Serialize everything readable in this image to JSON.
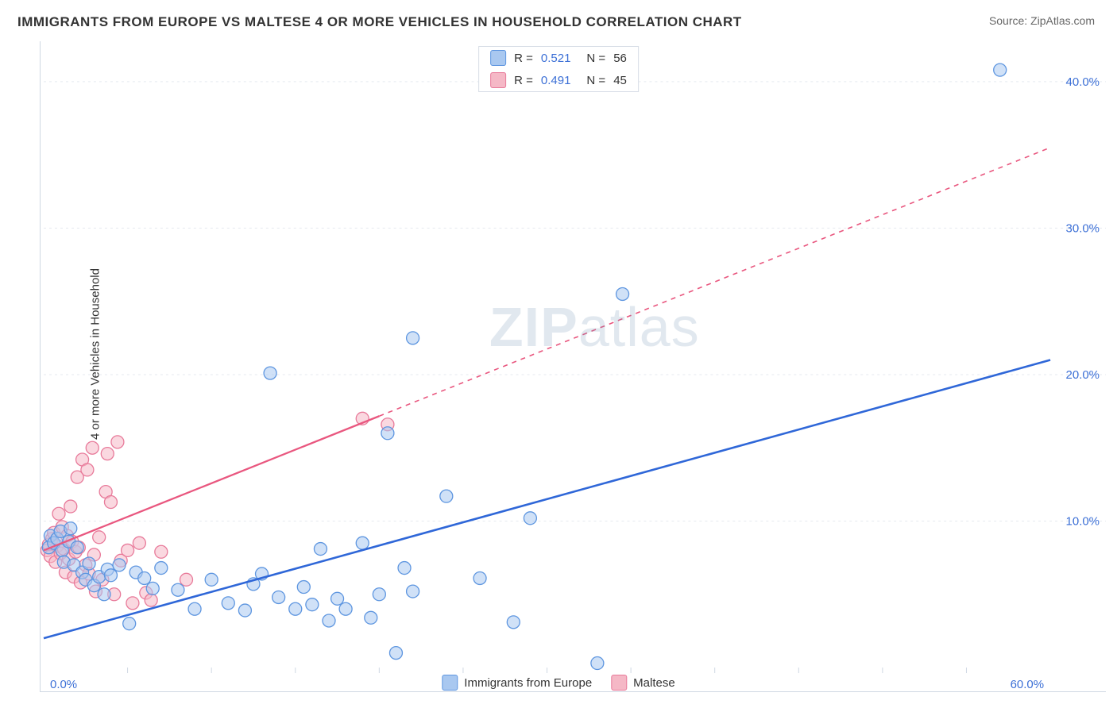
{
  "title": "IMMIGRANTS FROM EUROPE VS MALTESE 4 OR MORE VEHICLES IN HOUSEHOLD CORRELATION CHART",
  "source_label": "Source:",
  "source_value": "ZipAtlas.com",
  "ylabel": "4 or more Vehicles in Household",
  "watermark": "ZIPatlas",
  "chart": {
    "type": "scatter",
    "background_color": "#ffffff",
    "grid_color": "#e5e9ef",
    "grid_dash": "3,4",
    "axis_color": "#cfd8e3",
    "xlim": [
      0,
      60
    ],
    "ylim": [
      0,
      42
    ],
    "x_ticks": [
      0,
      60
    ],
    "x_tick_labels": [
      "0.0%",
      "60.0%"
    ],
    "x_minor_ticks": [
      5,
      10,
      15,
      20,
      25,
      30,
      35,
      40,
      45,
      50,
      55
    ],
    "y_ticks": [
      10,
      20,
      30,
      40
    ],
    "y_tick_labels": [
      "10.0%",
      "20.0%",
      "30.0%",
      "40.0%"
    ],
    "tick_label_color": "#3b6fd6",
    "tick_label_fontsize": 15,
    "marker_radius": 8,
    "marker_stroke_width": 1.3,
    "series": [
      {
        "name": "Immigrants from Europe",
        "fill": "#a9c8f0",
        "fill_opacity": 0.55,
        "stroke": "#5e96e0",
        "line_color": "#2f67d8",
        "line_width": 2.6,
        "line_dash_after_x": 60,
        "trend": {
          "x1": 0,
          "y1": 2.0,
          "x2": 60,
          "y2": 21.0
        },
        "R": 0.521,
        "N": 56,
        "points": [
          [
            0.3,
            8.2
          ],
          [
            0.4,
            9.0
          ],
          [
            0.6,
            8.5
          ],
          [
            0.8,
            8.8
          ],
          [
            1.0,
            9.3
          ],
          [
            1.1,
            8.0
          ],
          [
            1.2,
            7.2
          ],
          [
            1.5,
            8.6
          ],
          [
            1.6,
            9.5
          ],
          [
            1.8,
            7.0
          ],
          [
            2.0,
            8.2
          ],
          [
            2.3,
            6.5
          ],
          [
            2.5,
            6.0
          ],
          [
            2.7,
            7.1
          ],
          [
            3.0,
            5.6
          ],
          [
            3.3,
            6.2
          ],
          [
            3.6,
            5.0
          ],
          [
            3.8,
            6.7
          ],
          [
            4.0,
            6.3
          ],
          [
            4.5,
            7.0
          ],
          [
            5.1,
            3.0
          ],
          [
            5.5,
            6.5
          ],
          [
            6.0,
            6.1
          ],
          [
            6.5,
            5.4
          ],
          [
            7.0,
            6.8
          ],
          [
            8.0,
            5.3
          ],
          [
            9.0,
            4.0
          ],
          [
            10.0,
            6.0
          ],
          [
            11.0,
            4.4
          ],
          [
            12.0,
            3.9
          ],
          [
            12.5,
            5.7
          ],
          [
            13.0,
            6.4
          ],
          [
            13.5,
            20.1
          ],
          [
            14.0,
            4.8
          ],
          [
            15.0,
            4.0
          ],
          [
            15.5,
            5.5
          ],
          [
            16.0,
            4.3
          ],
          [
            16.5,
            8.1
          ],
          [
            17.0,
            3.2
          ],
          [
            17.5,
            4.7
          ],
          [
            18.0,
            4.0
          ],
          [
            19.0,
            8.5
          ],
          [
            19.5,
            3.4
          ],
          [
            20.0,
            5.0
          ],
          [
            20.5,
            16.0
          ],
          [
            21.0,
            1.0
          ],
          [
            21.5,
            6.8
          ],
          [
            22.0,
            5.2
          ],
          [
            22.0,
            22.5
          ],
          [
            24.0,
            11.7
          ],
          [
            26.0,
            6.1
          ],
          [
            28.0,
            3.1
          ],
          [
            29.0,
            10.2
          ],
          [
            33.0,
            0.3
          ],
          [
            34.5,
            25.5
          ],
          [
            57.0,
            40.8
          ]
        ]
      },
      {
        "name": "Maltese",
        "fill": "#f5b8c6",
        "fill_opacity": 0.55,
        "stroke": "#e87a9a",
        "line_color": "#e9577f",
        "line_width": 2.3,
        "line_dash_after_x": 20,
        "trend": {
          "x1": 0,
          "y1": 8.0,
          "x2": 60,
          "y2": 35.5
        },
        "R": 0.491,
        "N": 45,
        "points": [
          [
            0.2,
            8.0
          ],
          [
            0.3,
            8.4
          ],
          [
            0.4,
            7.6
          ],
          [
            0.5,
            8.8
          ],
          [
            0.6,
            9.2
          ],
          [
            0.7,
            7.2
          ],
          [
            0.8,
            8.3
          ],
          [
            0.9,
            10.5
          ],
          [
            1.0,
            7.8
          ],
          [
            1.1,
            9.6
          ],
          [
            1.2,
            8.1
          ],
          [
            1.3,
            6.5
          ],
          [
            1.4,
            9.0
          ],
          [
            1.5,
            7.4
          ],
          [
            1.6,
            11.0
          ],
          [
            1.7,
            8.6
          ],
          [
            1.8,
            6.2
          ],
          [
            1.9,
            7.9
          ],
          [
            2.0,
            13.0
          ],
          [
            2.1,
            8.2
          ],
          [
            2.2,
            5.8
          ],
          [
            2.3,
            14.2
          ],
          [
            2.5,
            7.0
          ],
          [
            2.6,
            13.5
          ],
          [
            2.7,
            6.4
          ],
          [
            2.9,
            15.0
          ],
          [
            3.0,
            7.7
          ],
          [
            3.1,
            5.2
          ],
          [
            3.3,
            8.9
          ],
          [
            3.5,
            6.0
          ],
          [
            3.7,
            12.0
          ],
          [
            3.8,
            14.6
          ],
          [
            4.0,
            11.3
          ],
          [
            4.2,
            5.0
          ],
          [
            4.4,
            15.4
          ],
          [
            4.6,
            7.3
          ],
          [
            5.0,
            8.0
          ],
          [
            5.3,
            4.4
          ],
          [
            5.7,
            8.5
          ],
          [
            6.1,
            5.1
          ],
          [
            6.4,
            4.6
          ],
          [
            7.0,
            7.9
          ],
          [
            8.5,
            6.0
          ],
          [
            19.0,
            17.0
          ],
          [
            20.5,
            16.6
          ]
        ]
      }
    ],
    "legend_top": {
      "r_color": "#3b6fd6"
    },
    "legend_bottom": [
      {
        "label": "Immigrants from Europe",
        "fill": "#a9c8f0",
        "stroke": "#5e96e0"
      },
      {
        "label": "Maltese",
        "fill": "#f5b8c6",
        "stroke": "#e87a9a"
      }
    ]
  }
}
